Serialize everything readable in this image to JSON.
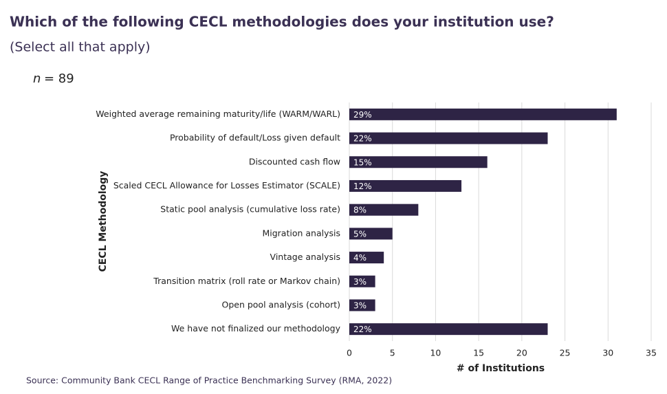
{
  "chart_data": {
    "type": "bar",
    "orientation": "horizontal",
    "title": "Which of the following CECL methodologies does your institution use?",
    "subtitle": "(Select all that apply)",
    "n_symbol": "n",
    "n_text": "= 89",
    "categories": [
      "Weighted average remaining maturity/life (WARM/WARL)",
      "Probability of default/Loss given default",
      "Discounted cash flow",
      "Scaled CECL Allowance for Losses Estimator (SCALE)",
      "Static pool analysis (cumulative loss rate)",
      "Migration analysis",
      "Vintage analysis",
      "Transition matrix (roll rate or Markov chain)",
      "Open pool analysis (cohort)",
      "We have not finalized our methodology"
    ],
    "values": [
      31,
      23,
      16,
      13,
      8,
      5,
      4,
      3,
      3,
      23
    ],
    "share_labels": [
      "29%",
      "22%",
      "15%",
      "12%",
      "8%",
      "5%",
      "4%",
      "3%",
      "3%",
      "22%"
    ],
    "color": "#2e2445",
    "xlim": [
      0,
      35
    ],
    "xticks": [
      0,
      5,
      10,
      15,
      20,
      25,
      30,
      35
    ],
    "grid": true,
    "xlabel": "# of Institutions",
    "ylabel": "CECL Methodology",
    "source": "Source: Community Bank CECL Range of Practice Benchmarking Survey (RMA, 2022)"
  }
}
